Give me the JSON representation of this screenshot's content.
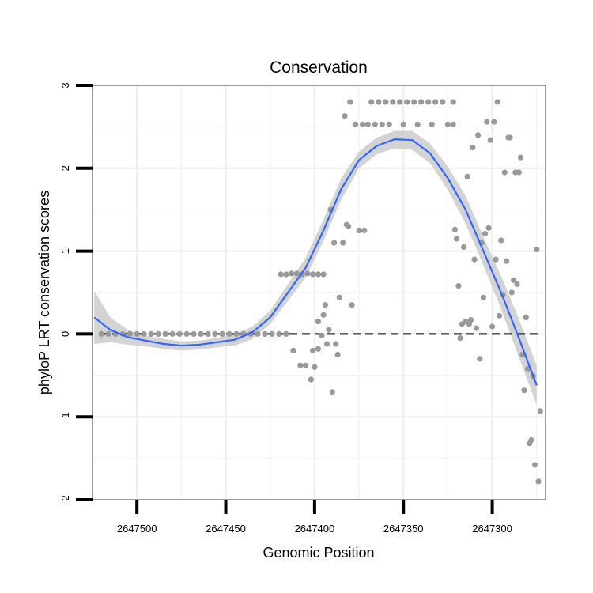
{
  "chart_data": {
    "type": "scatter",
    "title": "Conservation",
    "xlabel": "Genomic Position",
    "ylabel": "phyloP LRT conservation scores",
    "x_reversed": true,
    "xlim": [
      2647525,
      2647270
    ],
    "ylim": [
      -2,
      3
    ],
    "x_ticks": [
      2647500,
      2647450,
      2647400,
      2647350,
      2647300
    ],
    "x_tick_labels": [
      "2647500",
      "2647450",
      "2647400",
      "2647350",
      "2647300"
    ],
    "y_ticks": [
      -2,
      -1,
      0,
      1,
      2,
      3
    ],
    "y_tick_labels": [
      "-2",
      "-1",
      "0",
      "1",
      "2",
      "3"
    ],
    "grid": true,
    "reference_line": {
      "y": 0,
      "style": "dashed"
    },
    "colors": {
      "points": "#999999",
      "smooth": "#3366FF",
      "ribbon": "#d3d3d3",
      "ref_line": "#000000"
    },
    "points": [
      [
        2647520,
        0
      ],
      [
        2647516,
        0
      ],
      [
        2647512,
        0
      ],
      [
        2647508,
        0
      ],
      [
        2647504,
        0
      ],
      [
        2647500,
        0
      ],
      [
        2647496,
        0
      ],
      [
        2647492,
        0
      ],
      [
        2647488,
        0
      ],
      [
        2647484,
        0
      ],
      [
        2647480,
        0
      ],
      [
        2647476,
        0
      ],
      [
        2647472,
        0
      ],
      [
        2647468,
        0
      ],
      [
        2647464,
        0
      ],
      [
        2647460,
        0
      ],
      [
        2647456,
        0
      ],
      [
        2647452,
        0
      ],
      [
        2647448,
        0
      ],
      [
        2647444,
        0
      ],
      [
        2647440,
        0
      ],
      [
        2647436,
        0
      ],
      [
        2647432,
        0
      ],
      [
        2647428,
        0
      ],
      [
        2647424,
        0
      ],
      [
        2647420,
        0
      ],
      [
        2647416,
        0
      ],
      [
        2647419,
        0.72
      ],
      [
        2647416,
        0.72
      ],
      [
        2647413,
        0.73
      ],
      [
        2647410,
        0.73
      ],
      [
        2647407,
        0.72
      ],
      [
        2647404,
        0.73
      ],
      [
        2647401,
        0.72
      ],
      [
        2647398,
        0.72
      ],
      [
        2647395,
        0.72
      ],
      [
        2647412,
        -0.2
      ],
      [
        2647408,
        -0.38
      ],
      [
        2647405,
        -0.38
      ],
      [
        2647402,
        -0.55
      ],
      [
        2647401,
        -0.2
      ],
      [
        2647400,
        -0.4
      ],
      [
        2647398,
        -0.18
      ],
      [
        2647398,
        0.15
      ],
      [
        2647396,
        -0.02
      ],
      [
        2647395,
        0.23
      ],
      [
        2647394,
        0.35
      ],
      [
        2647393,
        -0.12
      ],
      [
        2647392,
        0.05
      ],
      [
        2647391,
        1.5
      ],
      [
        2647390,
        -0.7
      ],
      [
        2647389,
        1.1
      ],
      [
        2647388,
        -0.12
      ],
      [
        2647387,
        -0.25
      ],
      [
        2647386,
        0.44
      ],
      [
        2647384,
        1.1
      ],
      [
        2647383,
        2.63
      ],
      [
        2647382,
        1.32
      ],
      [
        2647381,
        1.3
      ],
      [
        2647380,
        2.8
      ],
      [
        2647379,
        0.35
      ],
      [
        2647377,
        2.53
      ],
      [
        2647375,
        1.25
      ],
      [
        2647373,
        2.53
      ],
      [
        2647372,
        1.25
      ],
      [
        2647370,
        2.53
      ],
      [
        2647368,
        2.8
      ],
      [
        2647366,
        2.53
      ],
      [
        2647364,
        2.8
      ],
      [
        2647362,
        2.53
      ],
      [
        2647360,
        2.8
      ],
      [
        2647358,
        2.53
      ],
      [
        2647356,
        2.8
      ],
      [
        2647352,
        2.8
      ],
      [
        2647350,
        2.53
      ],
      [
        2647348,
        2.8
      ],
      [
        2647344,
        2.8
      ],
      [
        2647342,
        2.53
      ],
      [
        2647340,
        2.8
      ],
      [
        2647336,
        2.8
      ],
      [
        2647334,
        2.53
      ],
      [
        2647332,
        2.8
      ],
      [
        2647328,
        2.8
      ],
      [
        2647325,
        2.53
      ],
      [
        2647322,
        2.53
      ],
      [
        2647322,
        2.8
      ],
      [
        2647321,
        1.26
      ],
      [
        2647320,
        1.15
      ],
      [
        2647319,
        0.58
      ],
      [
        2647318,
        -0.05
      ],
      [
        2647317,
        0.12
      ],
      [
        2647316,
        1.05
      ],
      [
        2647315,
        0.15
      ],
      [
        2647314,
        1.9
      ],
      [
        2647313,
        0.12
      ],
      [
        2647312,
        0.17
      ],
      [
        2647311,
        2.25
      ],
      [
        2647310,
        0.9
      ],
      [
        2647309,
        0.07
      ],
      [
        2647308,
        2.4
      ],
      [
        2647307,
        -0.3
      ],
      [
        2647306,
        1.1
      ],
      [
        2647305,
        0.44
      ],
      [
        2647304,
        1.21
      ],
      [
        2647303,
        2.56
      ],
      [
        2647302,
        1.28
      ],
      [
        2647301,
        2.34
      ],
      [
        2647300,
        0.09
      ],
      [
        2647299,
        2.56
      ],
      [
        2647298,
        0.9
      ],
      [
        2647297,
        2.8
      ],
      [
        2647296,
        0.22
      ],
      [
        2647295,
        1.13
      ],
      [
        2647294,
        0.47
      ],
      [
        2647293,
        1.95
      ],
      [
        2647292,
        0.88
      ],
      [
        2647291,
        2.37
      ],
      [
        2647290,
        2.37
      ],
      [
        2647289,
        0.5
      ],
      [
        2647288,
        0.65
      ],
      [
        2647287,
        1.95
      ],
      [
        2647286,
        0.6
      ],
      [
        2647285,
        1.95
      ],
      [
        2647284,
        2.13
      ],
      [
        2647283,
        -0.25
      ],
      [
        2647282,
        -0.68
      ],
      [
        2647281,
        0.2
      ],
      [
        2647280,
        -0.42
      ],
      [
        2647279,
        -1.32
      ],
      [
        2647278,
        -1.28
      ],
      [
        2647277,
        -0.51
      ],
      [
        2647276,
        -1.58
      ],
      [
        2647275,
        1.02
      ],
      [
        2647274,
        -1.78
      ],
      [
        2647273,
        -0.93
      ]
    ],
    "smooth": {
      "x": [
        2647524,
        2647515,
        2647505,
        2647495,
        2647485,
        2647475,
        2647465,
        2647455,
        2647445,
        2647435,
        2647425,
        2647415,
        2647405,
        2647395,
        2647385,
        2647375,
        2647365,
        2647355,
        2647345,
        2647335,
        2647325,
        2647315,
        2647305,
        2647295,
        2647285,
        2647275
      ],
      "y": [
        0.2,
        0.05,
        -0.04,
        -0.08,
        -0.12,
        -0.14,
        -0.13,
        -0.1,
        -0.07,
        0.02,
        0.2,
        0.5,
        0.8,
        1.25,
        1.75,
        2.1,
        2.27,
        2.35,
        2.34,
        2.18,
        1.88,
        1.5,
        1.0,
        0.5,
        -0.05,
        -0.62
      ],
      "upper": [
        0.52,
        0.2,
        0.05,
        -0.02,
        -0.06,
        -0.09,
        -0.08,
        -0.05,
        0.0,
        0.09,
        0.28,
        0.6,
        0.92,
        1.38,
        1.88,
        2.2,
        2.37,
        2.45,
        2.45,
        2.3,
        2.02,
        1.67,
        1.17,
        0.7,
        0.18,
        -0.38
      ],
      "lower": [
        -0.12,
        -0.1,
        -0.13,
        -0.15,
        -0.18,
        -0.2,
        -0.19,
        -0.16,
        -0.14,
        -0.06,
        0.12,
        0.4,
        0.68,
        1.12,
        1.62,
        2.0,
        2.17,
        2.24,
        2.22,
        2.06,
        1.74,
        1.33,
        0.83,
        0.3,
        -0.28,
        -0.86
      ]
    }
  }
}
